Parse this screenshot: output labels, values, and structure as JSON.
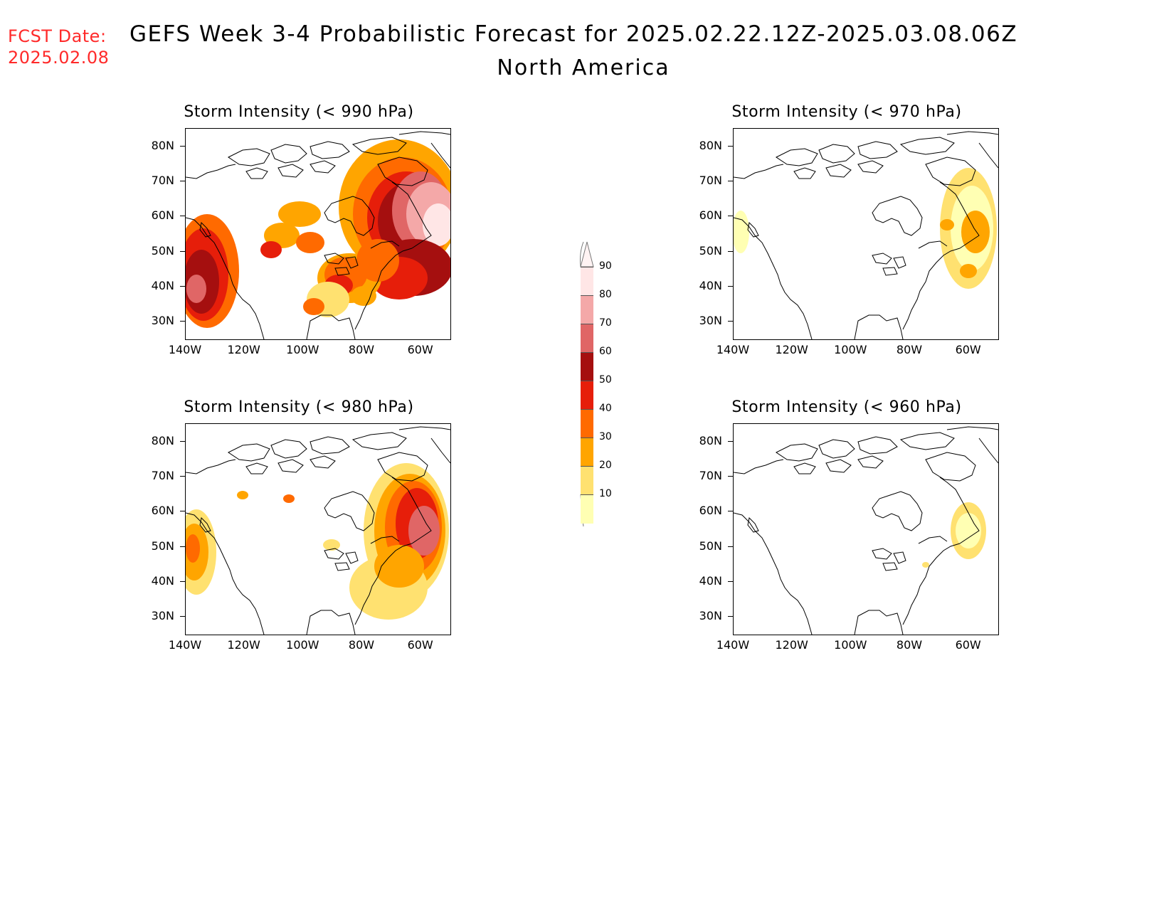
{
  "header": {
    "fcst_label": "FCST Date:",
    "fcst_date": "2025.02.08",
    "title": "GEFS Week 3-4 Probabilistic Forecast for 2025.02.22.12Z-2025.03.08.06Z",
    "subtitle": "North America"
  },
  "axes": {
    "lat_ticks": [
      "80N",
      "70N",
      "60N",
      "50N",
      "40N",
      "30N"
    ],
    "lon_ticks": [
      "140W",
      "120W",
      "100W",
      "80W",
      "60W"
    ]
  },
  "colorbar": {
    "labels": [
      "90",
      "80",
      "70",
      "60",
      "50",
      "40",
      "30",
      "20",
      "10"
    ],
    "colors": [
      "#ffe6e6",
      "#f4a8a8",
      "#e06666",
      "#a50f0f",
      "#e61e0a",
      "#ff6a00",
      "#ffa500",
      "#ffe170",
      "#ffffb3"
    ]
  },
  "panels": [
    {
      "title": "Storm Intensity (< 990 hPa)",
      "threshold": "990 hPa",
      "coverage": "high"
    },
    {
      "title": "Storm Intensity (< 970 hPa)",
      "threshold": "970 hPa",
      "coverage": "low"
    },
    {
      "title": "Storm Intensity (< 980 hPa)",
      "threshold": "980 hPa",
      "coverage": "medium"
    },
    {
      "title": "Storm Intensity (< 960 hPa)",
      "threshold": "960 hPa",
      "coverage": "minimal"
    }
  ]
}
